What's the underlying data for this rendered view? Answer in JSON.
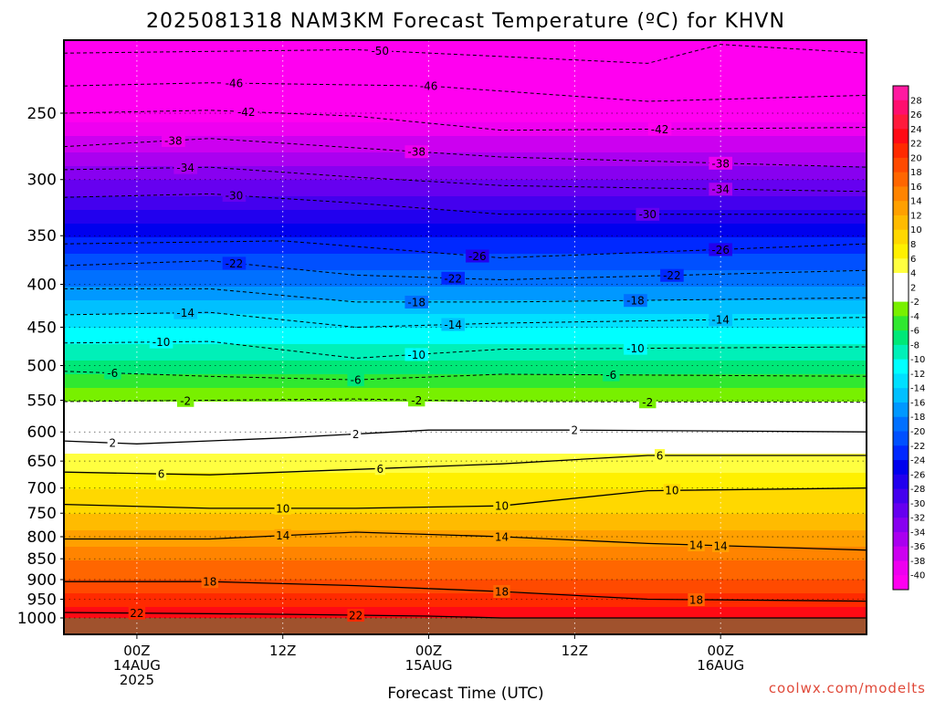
{
  "chart_data": {
    "type": "heatmap",
    "title": "2025081318 NAM3KM Forecast Temperature (ºC) for KHVN",
    "xlabel": "Forecast Time (UTC)",
    "ylabel": "",
    "credit": "coolwx.com/modelts",
    "y_scale": "log-pressure",
    "y_inverted": true,
    "ylim_hpa": [
      1000,
      200
    ],
    "y_ticks": [
      250,
      300,
      350,
      400,
      450,
      500,
      550,
      600,
      650,
      700,
      750,
      800,
      850,
      900,
      950,
      1000
    ],
    "xlim": [
      "2025-08-13T18:00Z",
      "2025-08-16T12:00Z"
    ],
    "x_ticks": [
      {
        "time": "2025-08-14T00:00Z",
        "lines": [
          "00Z",
          "14AUG",
          "2025"
        ]
      },
      {
        "time": "2025-08-14T12:00Z",
        "lines": [
          "12Z"
        ]
      },
      {
        "time": "2025-08-15T00:00Z",
        "lines": [
          "00Z",
          "15AUG"
        ]
      },
      {
        "time": "2025-08-15T12:00Z",
        "lines": [
          "12Z"
        ]
      },
      {
        "time": "2025-08-16T00:00Z",
        "lines": [
          "00Z",
          "16AUG"
        ]
      }
    ],
    "grid": true,
    "colorbar": {
      "placement": "right",
      "labels": [
        "28",
        "26",
        "24",
        "22",
        "20",
        "18",
        "16",
        "14",
        "12",
        "10",
        "8",
        "6",
        "4",
        "2",
        "-2",
        "-4",
        "-6",
        "-8",
        "-10",
        "-12",
        "-14",
        "-16",
        "-18",
        "-20",
        "-22",
        "-24",
        "-26",
        "-28",
        "-30",
        "-32",
        "-34",
        "-36",
        "-38",
        "-40"
      ],
      "colors": [
        "#ff1aa0",
        "#ff0f6e",
        "#ff1a3c",
        "#ff0a14",
        "#ff2a00",
        "#ff4a00",
        "#ff6600",
        "#ff8400",
        "#ffa000",
        "#ffbb00",
        "#ffd800",
        "#fff000",
        "#ffff40",
        "#ffffff",
        "#ffffff",
        "#78f000",
        "#30e830",
        "#00e878",
        "#00f0b8",
        "#00ffff",
        "#00e0ff",
        "#00c0ff",
        "#0098ff",
        "#0070ff",
        "#0050ff",
        "#0028ff",
        "#0000ee",
        "#2200ee",
        "#4400ee",
        "#6600f0",
        "#8800f0",
        "#aa00f0",
        "#cc00f0",
        "#ee00f0",
        "#ff00f0"
      ]
    },
    "vertical_profile_00Z_15AUG": [
      {
        "pressure_hpa": 1000,
        "temp_c": 24
      },
      {
        "pressure_hpa": 950,
        "temp_c": 21
      },
      {
        "pressure_hpa": 900,
        "temp_c": 18
      },
      {
        "pressure_hpa": 850,
        "temp_c": 16
      },
      {
        "pressure_hpa": 800,
        "temp_c": 13
      },
      {
        "pressure_hpa": 750,
        "temp_c": 10
      },
      {
        "pressure_hpa": 700,
        "temp_c": 8
      },
      {
        "pressure_hpa": 650,
        "temp_c": 5
      },
      {
        "pressure_hpa": 600,
        "temp_c": 2
      },
      {
        "pressure_hpa": 550,
        "temp_c": -2
      },
      {
        "pressure_hpa": 500,
        "temp_c": -7
      },
      {
        "pressure_hpa": 450,
        "temp_c": -12
      },
      {
        "pressure_hpa": 400,
        "temp_c": -18
      },
      {
        "pressure_hpa": 350,
        "temp_c": -24
      },
      {
        "pressure_hpa": 300,
        "temp_c": -32
      },
      {
        "pressure_hpa": 250,
        "temp_c": -41
      },
      {
        "pressure_hpa": 200,
        "temp_c": -52
      }
    ],
    "contours": [
      {
        "value": 22,
        "pressure_by_time": [
          {
            "t": "2025-08-13T18:00Z",
            "p": 985
          },
          {
            "t": "2025-08-14T12:00Z",
            "p": 990
          },
          {
            "t": "2025-08-15T00:00Z",
            "p": 995
          },
          {
            "t": "2025-08-15T06:00Z",
            "p": 1000
          }
        ],
        "labels": [
          {
            "t": "2025-08-14T00:00Z"
          },
          {
            "t": "2025-08-14T18:00Z"
          }
        ]
      },
      {
        "value": 18,
        "pressure_by_time": [
          {
            "t": "2025-08-13T18:00Z",
            "p": 905
          },
          {
            "t": "2025-08-14T06:00Z",
            "p": 905
          },
          {
            "t": "2025-08-14T18:00Z",
            "p": 915
          },
          {
            "t": "2025-08-15T06:00Z",
            "p": 930
          },
          {
            "t": "2025-08-15T18:00Z",
            "p": 950
          },
          {
            "t": "2025-08-16T12:00Z",
            "p": 955
          }
        ],
        "labels": [
          {
            "t": "2025-08-14T06:00Z"
          },
          {
            "t": "2025-08-15T06:00Z"
          },
          {
            "t": "2025-08-15T22:00Z"
          }
        ]
      },
      {
        "value": 14,
        "pressure_by_time": [
          {
            "t": "2025-08-13T18:00Z",
            "p": 805
          },
          {
            "t": "2025-08-14T06:00Z",
            "p": 805
          },
          {
            "t": "2025-08-14T18:00Z",
            "p": 790
          },
          {
            "t": "2025-08-15T06:00Z",
            "p": 800
          },
          {
            "t": "2025-08-15T18:00Z",
            "p": 815
          },
          {
            "t": "2025-08-16T12:00Z",
            "p": 830
          }
        ],
        "labels": [
          {
            "t": "2025-08-14T12:00Z"
          },
          {
            "t": "2025-08-15T06:00Z"
          },
          {
            "t": "2025-08-15T22:00Z"
          },
          {
            "t": "2025-08-16T00:00Z"
          }
        ]
      },
      {
        "value": 10,
        "pressure_by_time": [
          {
            "t": "2025-08-13T18:00Z",
            "p": 732
          },
          {
            "t": "2025-08-14T06:00Z",
            "p": 740
          },
          {
            "t": "2025-08-14T18:00Z",
            "p": 740
          },
          {
            "t": "2025-08-15T06:00Z",
            "p": 735
          },
          {
            "t": "2025-08-15T18:00Z",
            "p": 705
          },
          {
            "t": "2025-08-16T12:00Z",
            "p": 700
          }
        ],
        "labels": [
          {
            "t": "2025-08-14T12:00Z"
          },
          {
            "t": "2025-08-15T06:00Z"
          },
          {
            "t": "2025-08-15T20:00Z"
          }
        ]
      },
      {
        "value": 6,
        "pressure_by_time": [
          {
            "t": "2025-08-13T18:00Z",
            "p": 670
          },
          {
            "t": "2025-08-14T06:00Z",
            "p": 675
          },
          {
            "t": "2025-08-14T18:00Z",
            "p": 665
          },
          {
            "t": "2025-08-15T06:00Z",
            "p": 655
          },
          {
            "t": "2025-08-15T18:00Z",
            "p": 640
          },
          {
            "t": "2025-08-16T12:00Z",
            "p": 640
          }
        ],
        "labels": [
          {
            "t": "2025-08-14T02:00Z"
          },
          {
            "t": "2025-08-14T20:00Z"
          },
          {
            "t": "2025-08-15T19:00Z"
          }
        ]
      },
      {
        "value": 2,
        "pressure_by_time": [
          {
            "t": "2025-08-13T18:00Z",
            "p": 615
          },
          {
            "t": "2025-08-14T00:00Z",
            "p": 620
          },
          {
            "t": "2025-08-14T12:00Z",
            "p": 610
          },
          {
            "t": "2025-08-15T00:00Z",
            "p": 597
          },
          {
            "t": "2025-08-15T12:00Z",
            "p": 597
          },
          {
            "t": "2025-08-16T12:00Z",
            "p": 600
          }
        ],
        "labels": [
          {
            "t": "2025-08-13T22:00Z"
          },
          {
            "t": "2025-08-14T18:00Z"
          },
          {
            "t": "2025-08-15T12:00Z"
          }
        ]
      },
      {
        "value": -2,
        "pressure_by_time": [
          {
            "t": "2025-08-13T18:00Z",
            "p": 552
          },
          {
            "t": "2025-08-14T06:00Z",
            "p": 550
          },
          {
            "t": "2025-08-14T18:00Z",
            "p": 548
          },
          {
            "t": "2025-08-15T06:00Z",
            "p": 552
          },
          {
            "t": "2025-08-16T12:00Z",
            "p": 553
          }
        ],
        "labels": [
          {
            "t": "2025-08-14T04:00Z"
          },
          {
            "t": "2025-08-14T23:00Z"
          },
          {
            "t": "2025-08-15T18:00Z"
          }
        ]
      },
      {
        "value": -6,
        "pressure_by_time": [
          {
            "t": "2025-08-13T18:00Z",
            "p": 508
          },
          {
            "t": "2025-08-14T06:00Z",
            "p": 515
          },
          {
            "t": "2025-08-14T18:00Z",
            "p": 520
          },
          {
            "t": "2025-08-15T06:00Z",
            "p": 512
          },
          {
            "t": "2025-08-16T12:00Z",
            "p": 515
          }
        ],
        "labels": [
          {
            "t": "2025-08-13T22:00Z"
          },
          {
            "t": "2025-08-14T18:00Z"
          },
          {
            "t": "2025-08-15T15:00Z"
          }
        ]
      },
      {
        "value": -10,
        "pressure_by_time": [
          {
            "t": "2025-08-13T18:00Z",
            "p": 470
          },
          {
            "t": "2025-08-14T06:00Z",
            "p": 468
          },
          {
            "t": "2025-08-14T18:00Z",
            "p": 490
          },
          {
            "t": "2025-08-15T06:00Z",
            "p": 478
          },
          {
            "t": "2025-08-16T12:00Z",
            "p": 475
          }
        ],
        "labels": [
          {
            "t": "2025-08-14T02:00Z"
          },
          {
            "t": "2025-08-14T23:00Z"
          },
          {
            "t": "2025-08-15T17:00Z"
          }
        ]
      },
      {
        "value": -14,
        "pressure_by_time": [
          {
            "t": "2025-08-13T18:00Z",
            "p": 435
          },
          {
            "t": "2025-08-14T06:00Z",
            "p": 432
          },
          {
            "t": "2025-08-14T18:00Z",
            "p": 450
          },
          {
            "t": "2025-08-15T06:00Z",
            "p": 445
          },
          {
            "t": "2025-08-16T12:00Z",
            "p": 438
          }
        ],
        "labels": [
          {
            "t": "2025-08-14T04:00Z"
          },
          {
            "t": "2025-08-15T02:00Z"
          },
          {
            "t": "2025-08-16T00:00Z"
          }
        ]
      },
      {
        "value": -18,
        "pressure_by_time": [
          {
            "t": "2025-08-13T18:00Z",
            "p": 405
          },
          {
            "t": "2025-08-14T06:00Z",
            "p": 405
          },
          {
            "t": "2025-08-14T18:00Z",
            "p": 420
          },
          {
            "t": "2025-08-15T06:00Z",
            "p": 420
          },
          {
            "t": "2025-08-16T12:00Z",
            "p": 415
          }
        ],
        "labels": [
          {
            "t": "2025-08-14T23:00Z"
          },
          {
            "t": "2025-08-15T17:00Z"
          }
        ]
      },
      {
        "value": -22,
        "pressure_by_time": [
          {
            "t": "2025-08-13T18:00Z",
            "p": 380
          },
          {
            "t": "2025-08-14T06:00Z",
            "p": 375
          },
          {
            "t": "2025-08-14T18:00Z",
            "p": 390
          },
          {
            "t": "2025-08-15T06:00Z",
            "p": 395
          },
          {
            "t": "2025-08-16T12:00Z",
            "p": 385
          }
        ],
        "labels": [
          {
            "t": "2025-08-14T08:00Z"
          },
          {
            "t": "2025-08-15T02:00Z"
          },
          {
            "t": "2025-08-15T20:00Z"
          }
        ]
      },
      {
        "value": -26,
        "pressure_by_time": [
          {
            "t": "2025-08-13T18:00Z",
            "p": 358
          },
          {
            "t": "2025-08-14T12:00Z",
            "p": 355
          },
          {
            "t": "2025-08-15T06:00Z",
            "p": 372
          },
          {
            "t": "2025-08-16T12:00Z",
            "p": 358
          }
        ],
        "labels": [
          {
            "t": "2025-08-15T04:00Z"
          },
          {
            "t": "2025-08-16T00:00Z"
          }
        ]
      },
      {
        "value": -30,
        "pressure_by_time": [
          {
            "t": "2025-08-13T18:00Z",
            "p": 315
          },
          {
            "t": "2025-08-14T06:00Z",
            "p": 312
          },
          {
            "t": "2025-08-14T18:00Z",
            "p": 320
          },
          {
            "t": "2025-08-15T06:00Z",
            "p": 330
          },
          {
            "t": "2025-08-16T12:00Z",
            "p": 330
          }
        ],
        "labels": [
          {
            "t": "2025-08-14T08:00Z"
          },
          {
            "t": "2025-08-15T18:00Z"
          }
        ]
      },
      {
        "value": -34,
        "pressure_by_time": [
          {
            "t": "2025-08-13T18:00Z",
            "p": 292
          },
          {
            "t": "2025-08-14T06:00Z",
            "p": 290
          },
          {
            "t": "2025-08-14T18:00Z",
            "p": 298
          },
          {
            "t": "2025-08-15T06:00Z",
            "p": 305
          },
          {
            "t": "2025-08-16T12:00Z",
            "p": 310
          }
        ],
        "labels": [
          {
            "t": "2025-08-14T04:00Z"
          },
          {
            "t": "2025-08-16T00:00Z"
          }
        ]
      },
      {
        "value": -38,
        "pressure_by_time": [
          {
            "t": "2025-08-13T18:00Z",
            "p": 274
          },
          {
            "t": "2025-08-14T06:00Z",
            "p": 268
          },
          {
            "t": "2025-08-14T18:00Z",
            "p": 275
          },
          {
            "t": "2025-08-15T06:00Z",
            "p": 282
          },
          {
            "t": "2025-08-16T12:00Z",
            "p": 290
          }
        ],
        "labels": [
          {
            "t": "2025-08-14T03:00Z"
          },
          {
            "t": "2025-08-14T23:00Z"
          },
          {
            "t": "2025-08-16T00:00Z"
          }
        ]
      },
      {
        "value": -42,
        "pressure_by_time": [
          {
            "t": "2025-08-13T18:00Z",
            "p": 250
          },
          {
            "t": "2025-08-14T06:00Z",
            "p": 248
          },
          {
            "t": "2025-08-14T18:00Z",
            "p": 252
          },
          {
            "t": "2025-08-15T06:00Z",
            "p": 262
          },
          {
            "t": "2025-08-16T12:00Z",
            "p": 260
          }
        ],
        "labels": [
          {
            "t": "2025-08-14T09:00Z"
          },
          {
            "t": "2025-08-15T19:00Z"
          }
        ]
      },
      {
        "value": -46,
        "pressure_by_time": [
          {
            "t": "2025-08-13T18:00Z",
            "p": 232
          },
          {
            "t": "2025-08-14T06:00Z",
            "p": 230
          },
          {
            "t": "2025-08-15T00:00Z",
            "p": 232
          },
          {
            "t": "2025-08-15T18:00Z",
            "p": 242
          },
          {
            "t": "2025-08-16T12:00Z",
            "p": 238
          }
        ],
        "labels": [
          {
            "t": "2025-08-14T08:00Z"
          },
          {
            "t": "2025-08-15T00:00Z"
          }
        ]
      },
      {
        "value": -50,
        "pressure_by_time": [
          {
            "t": "2025-08-13T18:00Z",
            "p": 212
          },
          {
            "t": "2025-08-14T18:00Z",
            "p": 210
          },
          {
            "t": "2025-08-15T18:00Z",
            "p": 218
          },
          {
            "t": "2025-08-16T00:00Z",
            "p": 207
          },
          {
            "t": "2025-08-16T12:00Z",
            "p": 212
          }
        ],
        "labels": [
          {
            "t": "2025-08-14T20:00Z"
          }
        ]
      }
    ]
  }
}
